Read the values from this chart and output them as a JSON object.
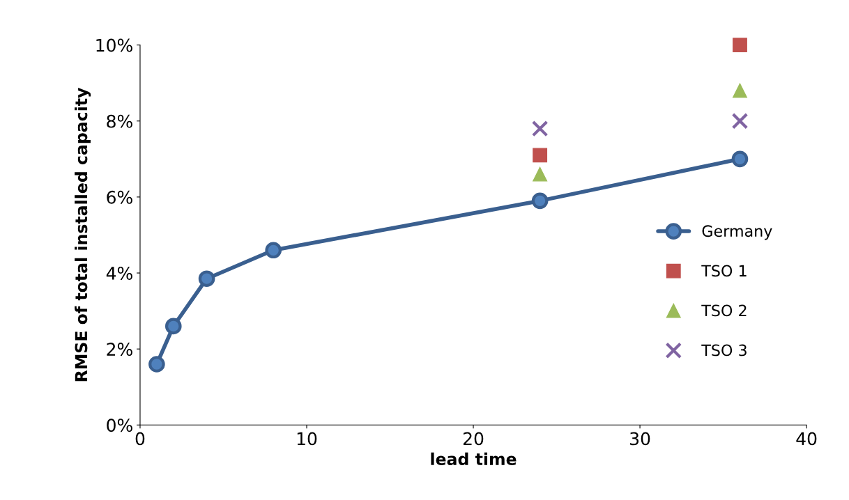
{
  "chart_data": {
    "type": "line",
    "xlabel": "lead time",
    "ylabel": "RMSE of total installed capacity",
    "xlim": [
      0,
      40
    ],
    "xticks": [
      0,
      10,
      20,
      30,
      40
    ],
    "ylim": [
      0,
      10
    ],
    "yticks": [
      {
        "value": 0,
        "label": "0%"
      },
      {
        "value": 2,
        "label": "2%"
      },
      {
        "value": 4,
        "label": "4%"
      },
      {
        "value": 6,
        "label": "6%"
      },
      {
        "value": 8,
        "label": "8%"
      },
      {
        "value": 10,
        "label": "10%"
      }
    ],
    "grid": false,
    "legend": "right",
    "series": [
      {
        "name": "Germany",
        "marker": "circle",
        "color": "#3a5f8f",
        "x": [
          1,
          2,
          4,
          8,
          24,
          36
        ],
        "values": [
          1.6,
          2.6,
          3.85,
          4.6,
          5.9,
          7.0
        ]
      },
      {
        "name": "TSO 1",
        "type": "scatter",
        "marker": "square",
        "color": "#c0504d",
        "x": [
          24,
          36
        ],
        "values": [
          7.1,
          10.0
        ]
      },
      {
        "name": "TSO 2",
        "type": "scatter",
        "marker": "triangle",
        "color": "#9bbb59",
        "x": [
          24,
          36
        ],
        "values": [
          6.6,
          8.8
        ]
      },
      {
        "name": "TSO 3",
        "type": "scatter",
        "marker": "cross",
        "color": "#8064a2",
        "x": [
          24,
          36
        ],
        "values": [
          7.8,
          8.0
        ]
      }
    ]
  }
}
